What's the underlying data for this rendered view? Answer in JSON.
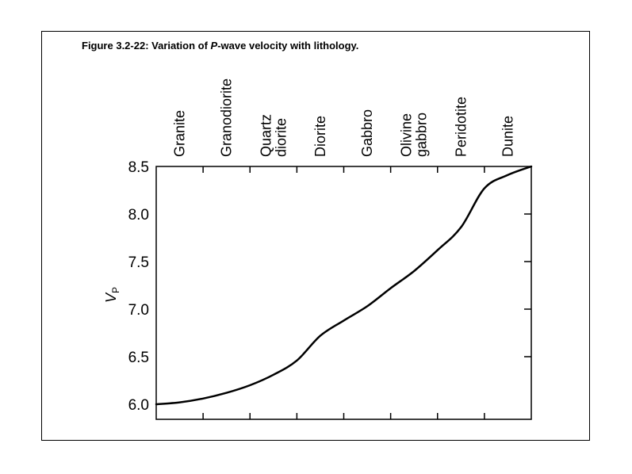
{
  "figure": {
    "title_prefix": "Figure 3.2-22: Variation of ",
    "title_italic": "P",
    "title_suffix": "-wave velocity with lithology."
  },
  "chart_data": {
    "type": "line",
    "title": "Figure 3.2-22: Variation of P-wave velocity with lithology.",
    "ylabel": "V",
    "ylabel_subscript": "P",
    "ylim": [
      6.0,
      8.5
    ],
    "yticks": [
      "6.0",
      "6.5",
      "7.0",
      "7.5",
      "8.0",
      "8.5"
    ],
    "lithology_labels": [
      [
        "Granite"
      ],
      [
        "Granodiorite"
      ],
      [
        "Quartz",
        "diorite"
      ],
      [
        "Diorite"
      ],
      [
        "Gabbro"
      ],
      [
        "Olivine",
        "gabbro"
      ],
      [
        "Peridotite"
      ],
      [
        "Dunite"
      ]
    ],
    "xlim": [
      0,
      8
    ],
    "series": [
      {
        "points": [
          [
            0.0,
            6.0
          ],
          [
            0.5,
            6.02
          ],
          [
            1.0,
            6.06
          ],
          [
            1.5,
            6.12
          ],
          [
            2.0,
            6.2
          ],
          [
            2.5,
            6.31
          ],
          [
            3.0,
            6.46
          ],
          [
            3.5,
            6.72
          ],
          [
            4.0,
            6.88
          ],
          [
            4.5,
            7.03
          ],
          [
            5.0,
            7.22
          ],
          [
            5.5,
            7.4
          ],
          [
            6.0,
            7.62
          ],
          [
            6.5,
            7.86
          ],
          [
            7.0,
            8.27
          ],
          [
            7.5,
            8.41
          ],
          [
            8.0,
            8.5
          ]
        ]
      }
    ],
    "line_color": "#000000",
    "grid": false
  }
}
